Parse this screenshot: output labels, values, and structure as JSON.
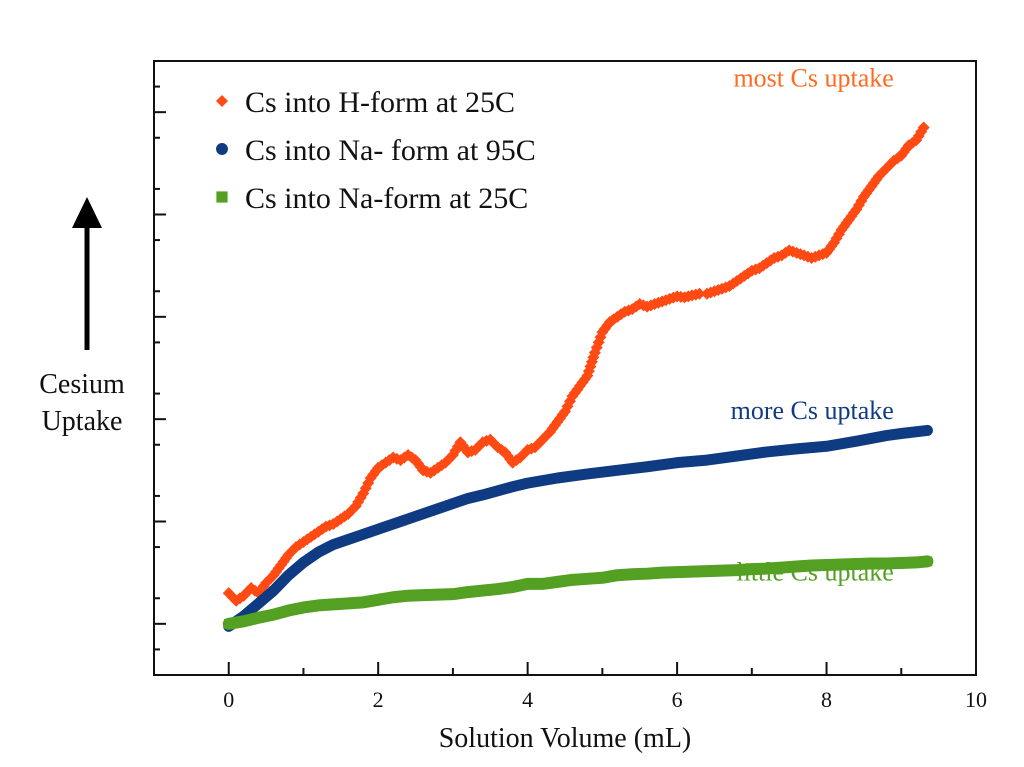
{
  "chart_data": {
    "type": "line",
    "title": "",
    "xlabel": "Solution Volume (mL)",
    "ylabel_lines": [
      "Cesium",
      "Uptake"
    ],
    "xlim": [
      -1,
      10
    ],
    "ylim": [
      0,
      12
    ],
    "x_ticks": [
      {
        "value": 0,
        "label": "0"
      },
      {
        "value": 2,
        "label": "2"
      },
      {
        "value": 4,
        "label": "4"
      },
      {
        "value": 6,
        "label": "6"
      },
      {
        "value": 8,
        "label": "8"
      },
      {
        "value": 10,
        "label": "10"
      }
    ],
    "x_minor_ticks": [
      1,
      3,
      5,
      7,
      9
    ],
    "y_major_ticks": [
      1,
      3,
      5,
      7,
      9,
      11
    ],
    "y_minor_ticks": [
      0.5,
      1.5,
      2.5,
      3.5,
      4.5,
      5.5,
      6.5,
      7.5,
      8.5,
      9.5,
      10.5,
      11.5
    ],
    "legend_position": "top-left",
    "series": [
      {
        "name": "Cs into H-form at  25C",
        "color": "#ff4a14",
        "marker": "diamond",
        "x": [
          0.0,
          0.1,
          0.2,
          0.3,
          0.4,
          0.5,
          0.6,
          0.7,
          0.8,
          0.9,
          1.0,
          1.1,
          1.2,
          1.3,
          1.4,
          1.5,
          1.6,
          1.7,
          1.8,
          1.9,
          2.0,
          2.1,
          2.2,
          2.3,
          2.4,
          2.5,
          2.6,
          2.7,
          2.8,
          2.9,
          3.0,
          3.1,
          3.2,
          3.3,
          3.4,
          3.5,
          3.6,
          3.7,
          3.8,
          3.9,
          4.0,
          4.1,
          4.2,
          4.3,
          4.4,
          4.5,
          4.6,
          4.7,
          4.8,
          4.9,
          5.0,
          5.1,
          5.2,
          5.3,
          5.4,
          5.5,
          5.6,
          5.7,
          5.8,
          5.9,
          6.0,
          6.1,
          6.2,
          6.3,
          6.4,
          6.5,
          6.6,
          6.7,
          6.8,
          6.9,
          7.0,
          7.1,
          7.2,
          7.3,
          7.4,
          7.5,
          7.6,
          7.7,
          7.8,
          7.9,
          8.0,
          8.1,
          8.2,
          8.3,
          8.4,
          8.5,
          8.6,
          8.7,
          8.8,
          8.9,
          9.0,
          9.1,
          9.2,
          9.3
        ],
        "y": [
          1.6,
          1.45,
          1.55,
          1.7,
          1.6,
          1.8,
          1.95,
          2.15,
          2.35,
          2.5,
          2.6,
          2.7,
          2.8,
          2.9,
          2.95,
          3.05,
          3.15,
          3.3,
          3.55,
          3.85,
          4.05,
          4.15,
          4.25,
          4.2,
          4.3,
          4.2,
          4.0,
          3.95,
          4.05,
          4.15,
          4.3,
          4.55,
          4.35,
          4.4,
          4.55,
          4.6,
          4.45,
          4.35,
          4.15,
          4.25,
          4.4,
          4.45,
          4.6,
          4.75,
          4.95,
          5.15,
          5.45,
          5.65,
          5.85,
          6.3,
          6.7,
          6.9,
          7.0,
          7.1,
          7.15,
          7.25,
          7.2,
          7.25,
          7.3,
          7.35,
          7.4,
          7.38,
          7.42,
          7.45,
          7.45,
          7.5,
          7.55,
          7.6,
          7.7,
          7.8,
          7.9,
          7.95,
          8.05,
          8.15,
          8.2,
          8.3,
          8.25,
          8.2,
          8.15,
          8.2,
          8.25,
          8.45,
          8.7,
          8.9,
          9.1,
          9.35,
          9.55,
          9.75,
          9.9,
          10.05,
          10.15,
          10.35,
          10.45,
          10.7
        ]
      },
      {
        "name": "Cs into Na- form at 95C",
        "color": "#0f3b82",
        "marker": "circle",
        "x": [
          0.0,
          0.2,
          0.4,
          0.6,
          0.8,
          1.0,
          1.2,
          1.4,
          1.6,
          1.8,
          2.0,
          2.2,
          2.4,
          2.6,
          2.8,
          3.0,
          3.2,
          3.4,
          3.6,
          3.8,
          4.0,
          4.4,
          4.8,
          5.2,
          5.6,
          6.0,
          6.4,
          6.8,
          7.2,
          7.6,
          8.0,
          8.4,
          8.8,
          9.0,
          9.35
        ],
        "y": [
          0.95,
          1.15,
          1.4,
          1.65,
          1.95,
          2.2,
          2.4,
          2.55,
          2.65,
          2.75,
          2.85,
          2.95,
          3.05,
          3.15,
          3.25,
          3.35,
          3.45,
          3.52,
          3.6,
          3.68,
          3.75,
          3.85,
          3.93,
          4.0,
          4.07,
          4.15,
          4.2,
          4.28,
          4.36,
          4.42,
          4.47,
          4.57,
          4.68,
          4.72,
          4.78
        ]
      },
      {
        "name": "Cs into Na-form at 25C",
        "color": "#54a022",
        "marker": "square",
        "x": [
          0.0,
          0.2,
          0.4,
          0.6,
          0.8,
          1.0,
          1.2,
          1.4,
          1.6,
          1.8,
          2.0,
          2.2,
          2.4,
          2.6,
          2.8,
          3.0,
          3.2,
          3.4,
          3.6,
          3.8,
          4.0,
          4.2,
          4.4,
          4.6,
          4.8,
          5.0,
          5.2,
          5.4,
          5.6,
          5.8,
          6.0,
          6.2,
          6.4,
          6.6,
          6.8,
          7.0,
          7.2,
          7.4,
          7.6,
          7.8,
          8.0,
          8.2,
          8.4,
          8.6,
          8.8,
          9.0,
          9.2,
          9.35
        ],
        "y": [
          1.0,
          1.05,
          1.12,
          1.18,
          1.26,
          1.32,
          1.36,
          1.38,
          1.4,
          1.42,
          1.47,
          1.52,
          1.55,
          1.56,
          1.57,
          1.58,
          1.62,
          1.65,
          1.68,
          1.72,
          1.78,
          1.78,
          1.82,
          1.86,
          1.88,
          1.9,
          1.95,
          1.97,
          1.98,
          2.0,
          2.01,
          2.02,
          2.03,
          2.04,
          2.05,
          2.07,
          2.08,
          2.1,
          2.12,
          2.14,
          2.15,
          2.16,
          2.17,
          2.18,
          2.18,
          2.19,
          2.2,
          2.22
        ]
      }
    ],
    "annotations": [
      {
        "text": "most Cs uptake",
        "color": "#ff6a1f",
        "x": 8.9,
        "y": 11.5
      },
      {
        "text": "more Cs uptake",
        "color": "#0f3b82",
        "x": 8.9,
        "y": 5.0
      },
      {
        "text": "little Cs uptake",
        "color": "#54a022",
        "x": 8.9,
        "y": 1.85
      }
    ]
  }
}
